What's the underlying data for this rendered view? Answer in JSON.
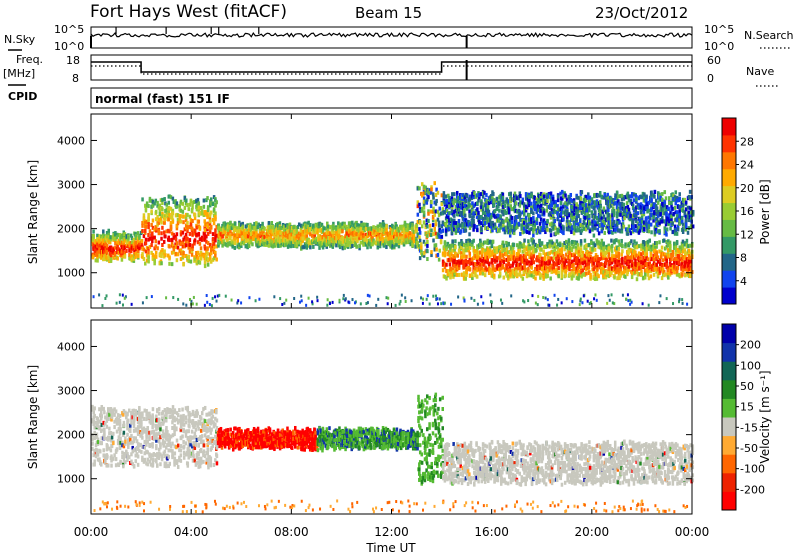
{
  "header": {
    "station": "Fort Hays West (fitACF)",
    "beam": "Beam 15",
    "date": "23/Oct/2012"
  },
  "nsky": {
    "label": "N.Sky",
    "tick_top": "10^5",
    "tick_bottom": "10^0",
    "right_label": "N.Search",
    "right_tick_top": "10^5",
    "right_tick_bottom": "10^0"
  },
  "freq": {
    "label": "Freq.",
    "unit": "[MHz]",
    "tick_top": "18",
    "tick_bottom": "8",
    "right_label": "Nave",
    "right_tick_top": "60",
    "right_tick_bottom": "0",
    "cpid_label": "CPID"
  },
  "program": "normal (fast) 151 IF",
  "x_axis": {
    "label": "Time UT",
    "ticks": [
      "00:00",
      "04:00",
      "08:00",
      "12:00",
      "16:00",
      "20:00",
      "00:00"
    ]
  },
  "chart_data": [
    {
      "type": "heatmap",
      "name": "power",
      "ylabel": "Slant Range [km]",
      "yticks": [
        1000,
        2000,
        3000,
        4000
      ],
      "ylim": [
        200,
        4600
      ],
      "xlim_hours": [
        0,
        24
      ],
      "colorbar": {
        "label": "Power [dB]",
        "ticks": [
          "28",
          "24",
          "20",
          "16",
          "12",
          "8",
          "4"
        ],
        "colors": [
          "#0000cc",
          "#1144ee",
          "#226688",
          "#339966",
          "#66bb44",
          "#99cc33",
          "#ddcc22",
          "#ffaa00",
          "#ff7700",
          "#ff3300",
          "#ee0000"
        ]
      },
      "echo_bands_range_km": [
        {
          "t": [
            0,
            2
          ],
          "r": [
            1300,
            1900
          ],
          "level": "high"
        },
        {
          "t": [
            2,
            5
          ],
          "r": [
            1200,
            2700
          ],
          "level": "high"
        },
        {
          "t": [
            5,
            13
          ],
          "r": [
            1600,
            2100
          ],
          "level": "medium-high"
        },
        {
          "t": [
            13,
            14
          ],
          "r": [
            1300,
            3000
          ],
          "level": "mixed"
        },
        {
          "t": [
            14,
            24
          ],
          "r": [
            900,
            1700
          ],
          "level": "high"
        },
        {
          "t": [
            14,
            24
          ],
          "r": [
            1900,
            2800
          ],
          "level": "low"
        }
      ]
    },
    {
      "type": "heatmap",
      "name": "velocity",
      "ylabel": "Slant Range [km]",
      "yticks": [
        1000,
        2000,
        3000,
        4000
      ],
      "ylim": [
        200,
        4600
      ],
      "xlim_hours": [
        0,
        24
      ],
      "colorbar": {
        "label": "Velocity [m s⁻¹]",
        "ticks": [
          "200",
          "100",
          "50",
          "15",
          "-15",
          "-50",
          "-100",
          "-200"
        ],
        "colors": [
          "#ff0000",
          "#ee2200",
          "#ff6600",
          "#ffaa33",
          "#c8c8be",
          "#55bb33",
          "#228822",
          "#116655",
          "#1133aa",
          "#0000aa"
        ]
      },
      "echo_bands_range_km": [
        {
          "t": [
            0,
            5
          ],
          "r": [
            1300,
            2600
          ],
          "velocity": "ground scatter"
        },
        {
          "t": [
            5,
            9
          ],
          "r": [
            1700,
            2100
          ],
          "velocity": "-200 to -100"
        },
        {
          "t": [
            9,
            13
          ],
          "r": [
            1700,
            2100
          ],
          "velocity": "15 to 200"
        },
        {
          "t": [
            13,
            14
          ],
          "r": [
            900,
            2900
          ],
          "velocity": "15 to 100"
        },
        {
          "t": [
            14,
            24
          ],
          "r": [
            900,
            1800
          ],
          "velocity": "ground scatter"
        }
      ]
    }
  ],
  "colors": {
    "frame": "#000000",
    "background": "#ffffff"
  }
}
